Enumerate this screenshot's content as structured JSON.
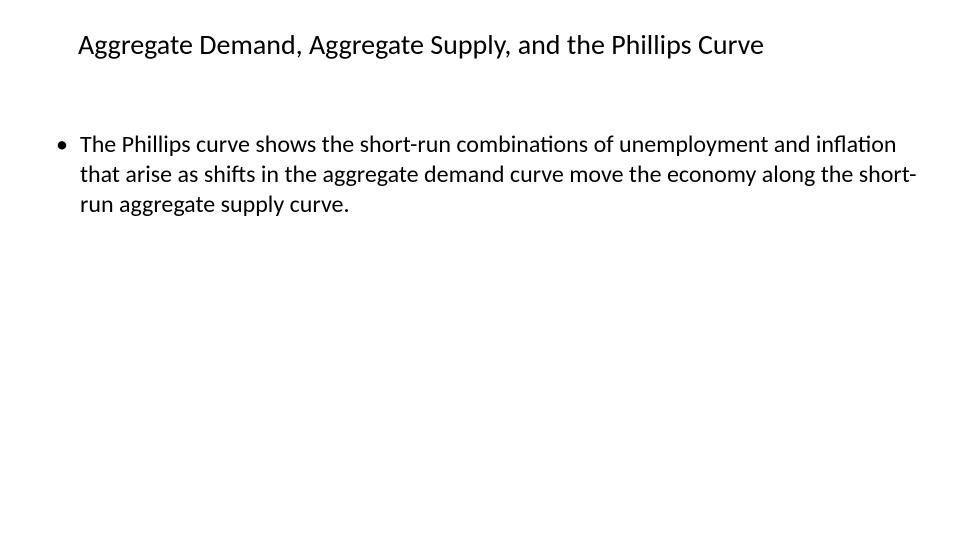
{
  "slide": {
    "title": "Aggregate Demand, Aggregate Supply, and the Phillips Curve",
    "bullets": [
      "The Phillips curve shows the short-run combinations of unemployment and inflation that arise as shifts in the aggregate demand curve move the economy along the short-run aggregate supply curve."
    ],
    "style": {
      "background_color": "#ffffff",
      "title_fontsize": 28,
      "title_color": "#000000",
      "body_fontsize": 24,
      "body_color": "#000000",
      "bullet_glyph": "•",
      "font_family": "Calibri"
    }
  }
}
